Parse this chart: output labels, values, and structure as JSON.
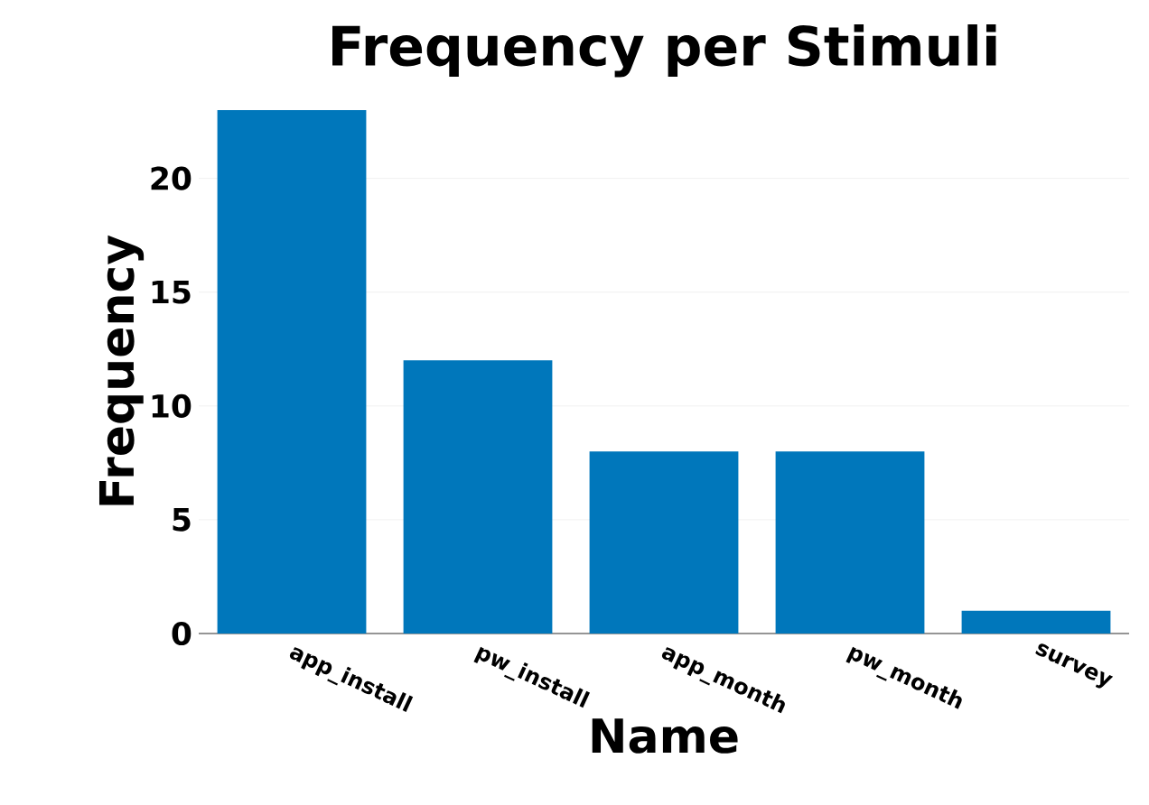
{
  "chart_data": {
    "type": "bar",
    "title": "Frequency per Stimuli",
    "xlabel": "Name",
    "ylabel": "Frequency",
    "categories": [
      "app_install",
      "pw_install",
      "app_month",
      "pw_month",
      "survey"
    ],
    "values": [
      23,
      12,
      8,
      8,
      1
    ],
    "color": "#0077bb",
    "ylim": [
      0,
      23
    ],
    "yticks": [
      0,
      5,
      10,
      15,
      20
    ],
    "grid": "y"
  }
}
